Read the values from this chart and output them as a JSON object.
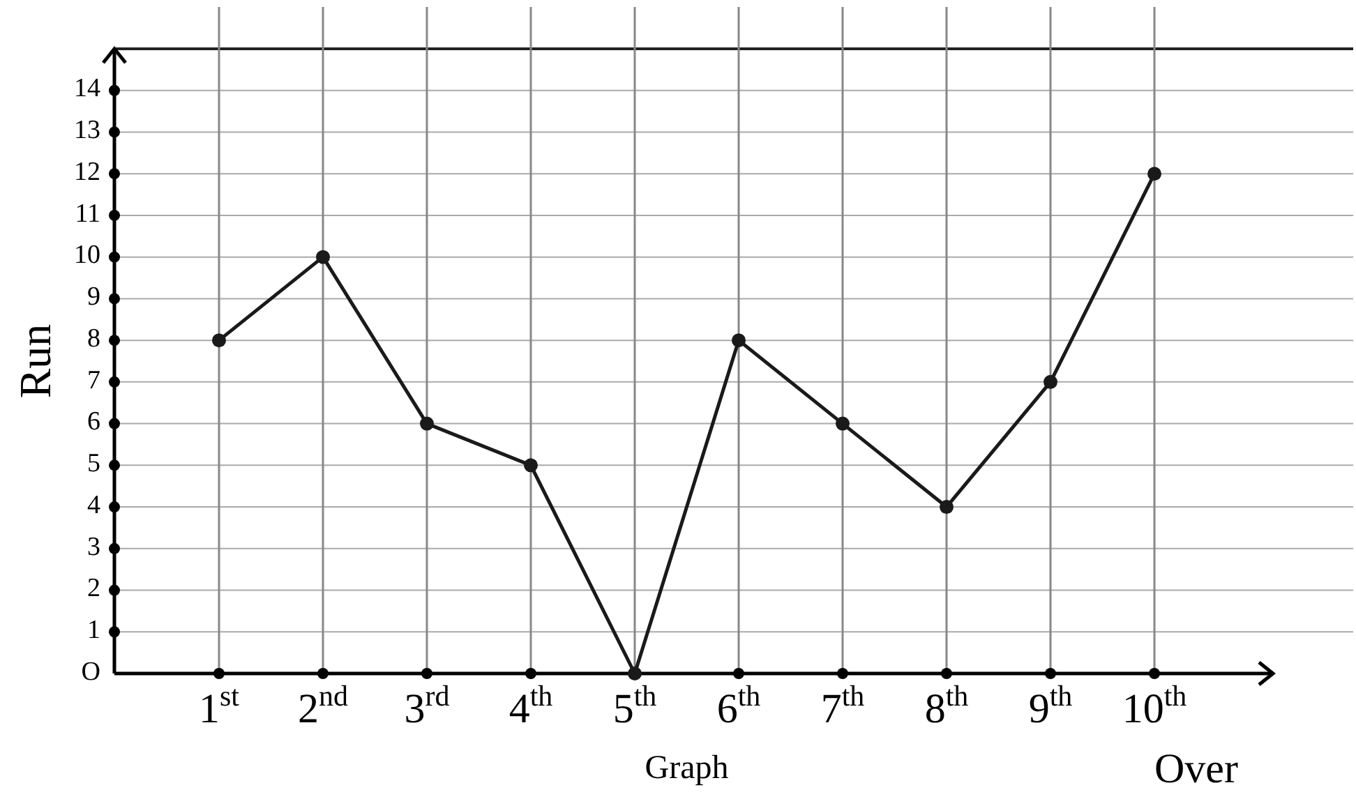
{
  "chart_data": {
    "type": "line",
    "title": "Graph",
    "xlabel": "Over",
    "ylabel": "Run",
    "categories": [
      "1$^{st}$",
      "2$^{nd}$",
      "3$^{rd}$",
      "4$^{th}$",
      "5$^{th}$",
      "6$^{th}$",
      "7$^{th}$",
      "8$^{th}$",
      "9$^{th}$",
      "10$^{th}$"
    ],
    "series": [
      {
        "color": "#1a1a1a",
        "values": [
          8,
          10,
          6,
          5,
          0,
          8,
          6,
          4,
          7,
          12
        ]
      }
    ],
    "ylim": [
      0,
      15
    ],
    "yticks": [
      {
        "value": 0,
        "label": "O"
      },
      1,
      2,
      3,
      4,
      5,
      6,
      7,
      8,
      9,
      10,
      11,
      12,
      13,
      14
    ],
    "grid": true,
    "marker": "circle",
    "line_style": "solid"
  }
}
